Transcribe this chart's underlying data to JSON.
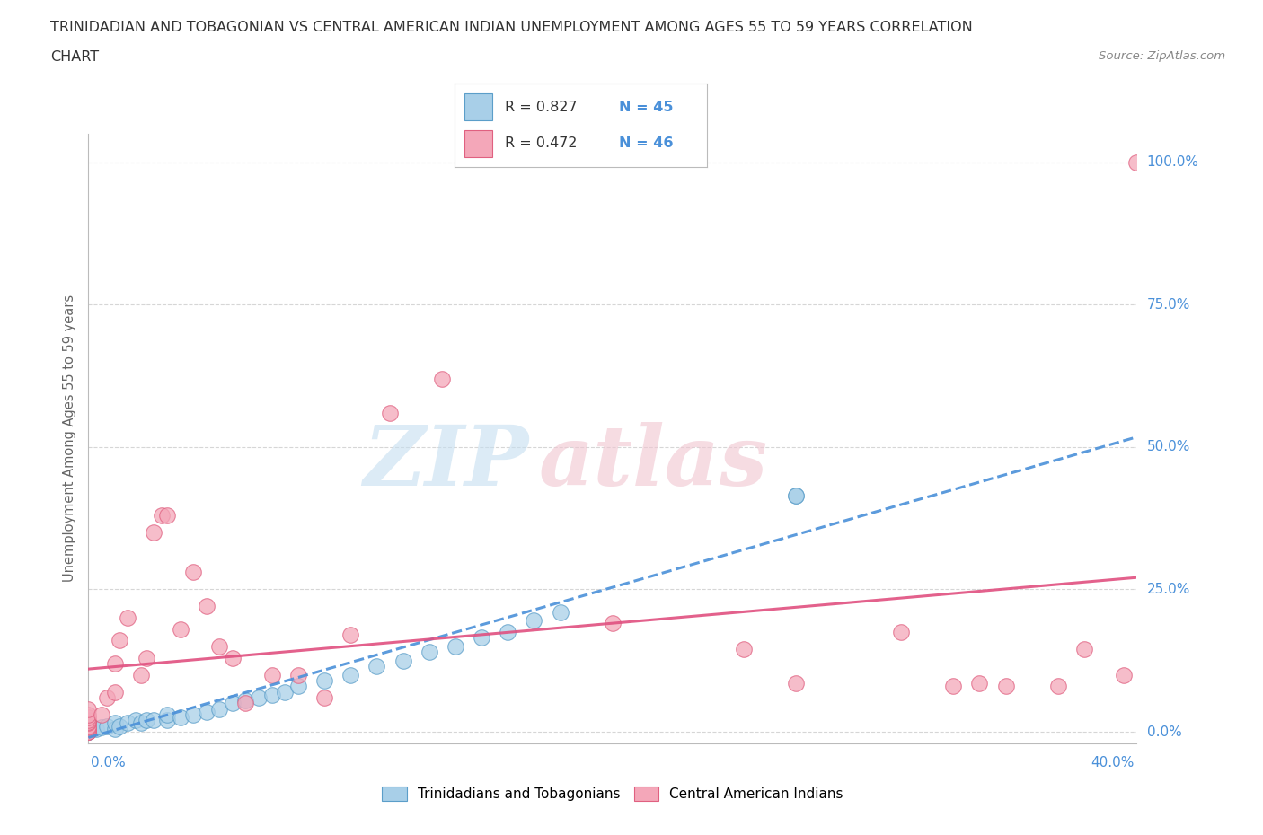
{
  "title_line1": "TRINIDADIAN AND TOBAGONIAN VS CENTRAL AMERICAN INDIAN UNEMPLOYMENT AMONG AGES 55 TO 59 YEARS CORRELATION",
  "title_line2": "CHART",
  "source_text": "Source: ZipAtlas.com",
  "xlabel_bottom_left": "0.0%",
  "xlabel_bottom_right": "40.0%",
  "ylabel": "Unemployment Among Ages 55 to 59 years",
  "ytick_labels": [
    "0.0%",
    "25.0%",
    "50.0%",
    "75.0%",
    "100.0%"
  ],
  "ytick_values": [
    0.0,
    0.25,
    0.5,
    0.75,
    1.0
  ],
  "xmin": 0.0,
  "xmax": 0.4,
  "ymin": -0.02,
  "ymax": 1.05,
  "color_blue": "#a8cfe8",
  "color_pink": "#f4a7b9",
  "color_blue_edge": "#5b9ec9",
  "color_pink_edge": "#e06080",
  "color_blue_line": "#4a90d9",
  "color_pink_line": "#e05080",
  "watermark_zip_color": "#d0e8f5",
  "watermark_atlas_color": "#f5d0dc",
  "legend_label_blue": "Trinidadians and Tobagonians",
  "legend_label_pink": "Central American Indians",
  "background_color": "#ffffff",
  "grid_color": "#cccccc",
  "title_color": "#333333",
  "axis_label_color": "#666666",
  "tick_label_color": "#4a90d9",
  "blue_scatter_x": [
    0.0,
    0.0,
    0.0,
    0.0,
    0.0,
    0.0,
    0.0,
    0.0,
    0.0,
    0.0,
    0.003,
    0.005,
    0.007,
    0.01,
    0.01,
    0.012,
    0.015,
    0.018,
    0.02,
    0.022,
    0.025,
    0.03,
    0.03,
    0.035,
    0.04,
    0.045,
    0.05,
    0.055,
    0.06,
    0.065,
    0.07,
    0.075,
    0.08,
    0.09,
    0.1,
    0.11,
    0.12,
    0.13,
    0.14,
    0.15,
    0.16,
    0.17,
    0.18,
    0.27,
    0.27
  ],
  "blue_scatter_y": [
    0.0,
    0.0,
    0.0,
    0.0,
    0.005,
    0.008,
    0.01,
    0.012,
    0.015,
    0.018,
    0.005,
    0.008,
    0.01,
    0.005,
    0.015,
    0.01,
    0.015,
    0.02,
    0.015,
    0.02,
    0.02,
    0.02,
    0.03,
    0.025,
    0.03,
    0.035,
    0.04,
    0.05,
    0.055,
    0.06,
    0.065,
    0.07,
    0.08,
    0.09,
    0.1,
    0.115,
    0.125,
    0.14,
    0.15,
    0.165,
    0.175,
    0.195,
    0.21,
    0.415,
    0.415
  ],
  "pink_scatter_x": [
    0.0,
    0.0,
    0.0,
    0.0,
    0.0,
    0.0,
    0.0,
    0.0,
    0.0,
    0.0,
    0.0,
    0.0,
    0.005,
    0.007,
    0.01,
    0.01,
    0.012,
    0.015,
    0.02,
    0.022,
    0.025,
    0.028,
    0.03,
    0.035,
    0.04,
    0.045,
    0.05,
    0.055,
    0.06,
    0.07,
    0.08,
    0.09,
    0.1,
    0.115,
    0.135,
    0.2,
    0.25,
    0.27,
    0.31,
    0.33,
    0.34,
    0.35,
    0.37,
    0.38,
    0.395,
    0.4
  ],
  "pink_scatter_y": [
    0.0,
    0.0,
    0.0,
    0.005,
    0.008,
    0.01,
    0.015,
    0.018,
    0.02,
    0.025,
    0.03,
    0.04,
    0.03,
    0.06,
    0.07,
    0.12,
    0.16,
    0.2,
    0.1,
    0.13,
    0.35,
    0.38,
    0.38,
    0.18,
    0.28,
    0.22,
    0.15,
    0.13,
    0.05,
    0.1,
    0.1,
    0.06,
    0.17,
    0.56,
    0.62,
    0.19,
    0.145,
    0.085,
    0.175,
    0.08,
    0.085,
    0.08,
    0.08,
    0.145,
    0.1,
    1.0
  ]
}
